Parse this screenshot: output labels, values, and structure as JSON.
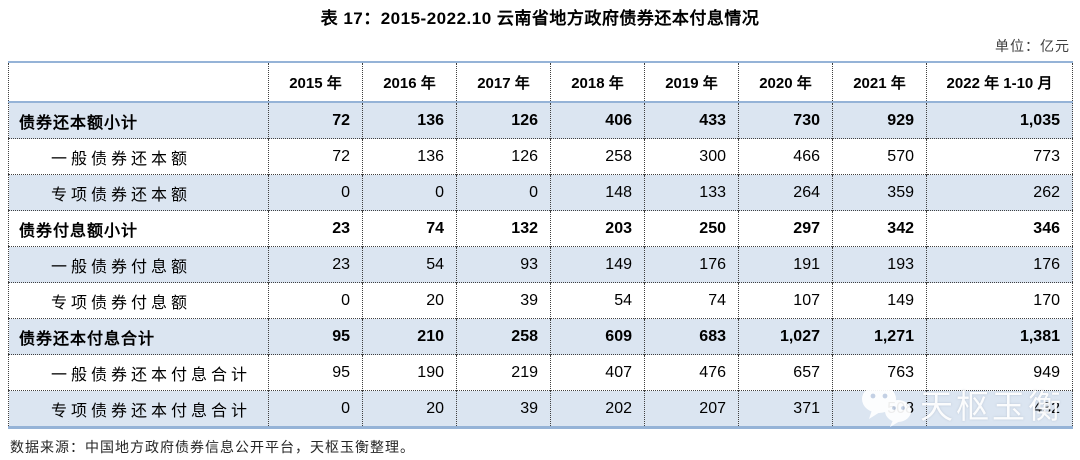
{
  "title": "表 17：2015-2022.10 云南省地方政府债券还本付息情况",
  "unit_label": "单位：亿元",
  "source": "数据来源：中国地方政府债券信息公开平台，天枢玉衡整理。",
  "watermark": {
    "text": "天枢玉衡",
    "icon": "wechat-icon"
  },
  "colors": {
    "accent_border": "#95B3D7",
    "row_shade": "#DBE5F1",
    "body_text": "#000000",
    "unit_text": "#3F3F3F",
    "watermark_text": "#FFFFFF"
  },
  "chart_data": {
    "type": "table",
    "title": "表 17：2015-2022.10 云南省地方政府债券还本付息情况",
    "unit": "亿元",
    "columns": [
      "",
      "2015 年",
      "2016 年",
      "2017 年",
      "2018 年",
      "2019 年",
      "2020 年",
      "2021 年",
      "2022 年 1-10 月"
    ],
    "rows": [
      {
        "label": "债券还本额小计",
        "subtotal": true,
        "values": [
          "72",
          "136",
          "126",
          "406",
          "433",
          "730",
          "929",
          "1,035"
        ]
      },
      {
        "label": "一般债券还本额",
        "subtotal": false,
        "values": [
          "72",
          "136",
          "126",
          "258",
          "300",
          "466",
          "570",
          "773"
        ]
      },
      {
        "label": "专项债券还本额",
        "subtotal": false,
        "values": [
          "0",
          "0",
          "0",
          "148",
          "133",
          "264",
          "359",
          "262"
        ]
      },
      {
        "label": "债券付息额小计",
        "subtotal": true,
        "values": [
          "23",
          "74",
          "132",
          "203",
          "250",
          "297",
          "342",
          "346"
        ]
      },
      {
        "label": "一般债券付息额",
        "subtotal": false,
        "values": [
          "23",
          "54",
          "93",
          "149",
          "176",
          "191",
          "193",
          "176"
        ]
      },
      {
        "label": "专项债券付息额",
        "subtotal": false,
        "values": [
          "0",
          "20",
          "39",
          "54",
          "74",
          "107",
          "149",
          "170"
        ]
      },
      {
        "label": "债券还本付息合计",
        "subtotal": true,
        "values": [
          "95",
          "210",
          "258",
          "609",
          "683",
          "1,027",
          "1,271",
          "1,381"
        ]
      },
      {
        "label": "一般债券还本付息合计",
        "subtotal": false,
        "values": [
          "95",
          "190",
          "219",
          "407",
          "476",
          "657",
          "763",
          "949"
        ]
      },
      {
        "label": "专项债券还本付息合计",
        "subtotal": false,
        "values": [
          "0",
          "20",
          "39",
          "202",
          "207",
          "371",
          "508",
          "432"
        ]
      }
    ]
  }
}
